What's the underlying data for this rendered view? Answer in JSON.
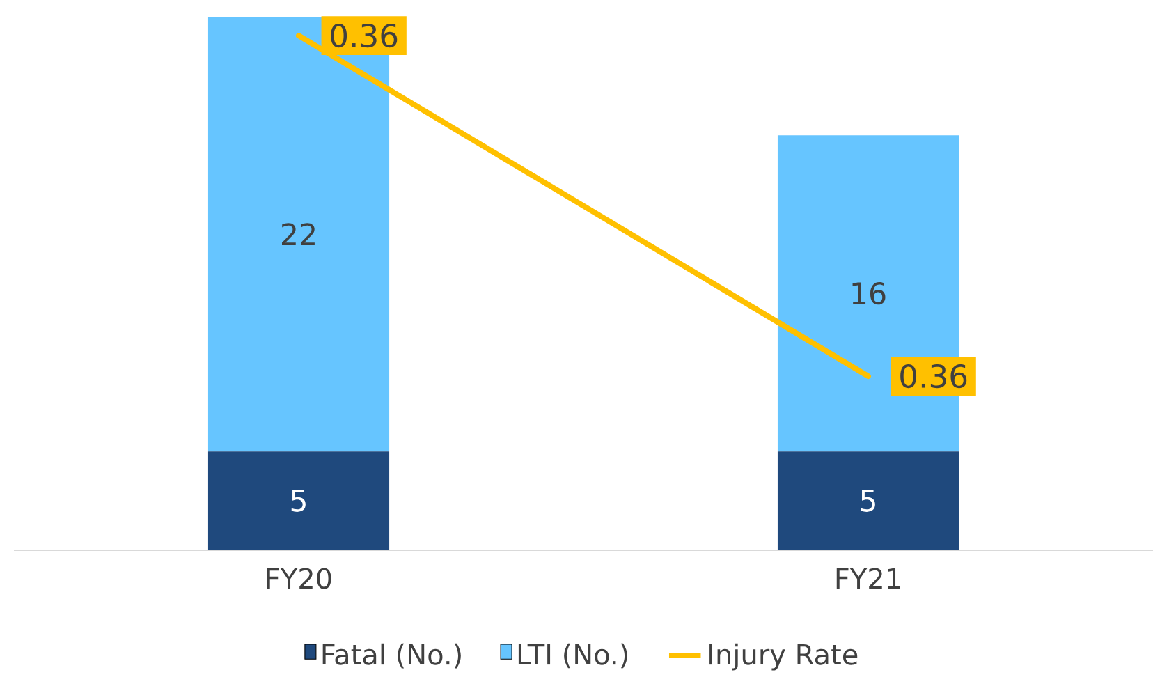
{
  "chart_data": {
    "type": "bar",
    "stacked": true,
    "categories": [
      "FY20",
      "FY21"
    ],
    "y2lim": [
      0.3504,
      0.3645
    ],
    "tick_labels": "x",
    "data_labels": true,
    "legend": "bottom",
    "grid": false,
    "series": [
      {
        "name": "Fatal (No.)",
        "color": "#1f497d",
        "values": [
          5,
          5
        ]
      },
      {
        "name": "LTI (No.)",
        "color": "#66c5ff",
        "values": [
          22,
          16
        ]
      },
      {
        "name": "Injury Rate",
        "type": "line",
        "axis": "y2",
        "color": "#ffc000",
        "values": [
          0.364,
          0.355
        ],
        "value_labels": [
          "0.36",
          "0.36"
        ]
      }
    ]
  }
}
